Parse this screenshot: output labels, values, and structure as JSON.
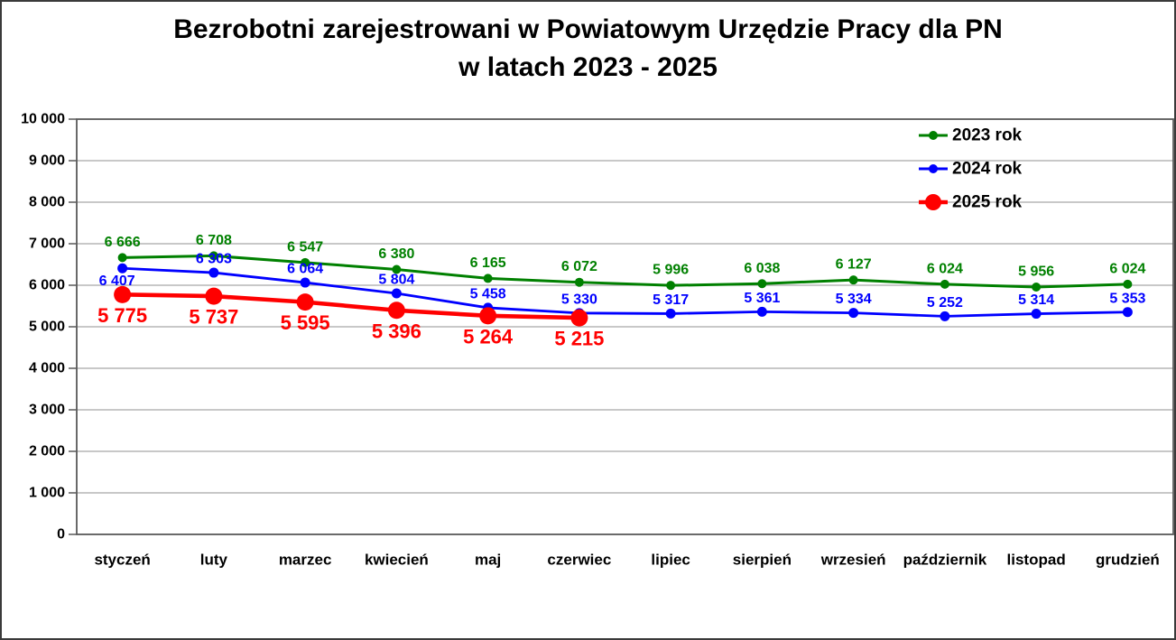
{
  "title": {
    "line1": "Bezrobotni zarejestrowani w Powiatowym Urzędzie Pracy dla PN",
    "line2": "w latach 2023 - 2025"
  },
  "y_axis": {
    "tick_labels": [
      "0",
      "1 000",
      "2 000",
      "3 000",
      "4 000",
      "5 000",
      "6 000",
      "7 000",
      "8 000",
      "9 000",
      "10 000"
    ]
  },
  "legend": {
    "items": [
      "2023 rok",
      "2024 rok",
      "2025 rok"
    ]
  },
  "colors": {
    "series_2023": "#008000",
    "series_2024": "#0000ff",
    "series_2025": "#ff0000",
    "gridline": "#a6a6a6",
    "plot_border": "#595959",
    "text": "#000000",
    "background": "#ffffff"
  },
  "chart_data": {
    "type": "line",
    "title": "Bezrobotni zarejestrowani w Powiatowym Urzędzie Pracy dla PN w latach 2023 - 2025",
    "categories": [
      "styczeń",
      "luty",
      "marzec",
      "kwiecień",
      "maj",
      "czerwiec",
      "lipiec",
      "sierpień",
      "wrzesień",
      "październik",
      "listopad",
      "grudzień"
    ],
    "series": [
      {
        "name": "2023 rok",
        "color": "#008000",
        "line_width": 3,
        "marker_radius": 5,
        "label_font_size": 16,
        "label_dy": -17,
        "values": [
          6666,
          6708,
          6547,
          6380,
          6165,
          6072,
          5996,
          6038,
          6127,
          6024,
          5956,
          6024
        ]
      },
      {
        "name": "2024 rok",
        "color": "#0000ff",
        "line_width": 2.8,
        "marker_radius": 5.5,
        "label_font_size": 16,
        "label_dy": -15,
        "label_overrides": {
          "0": {
            "dx": -6,
            "dy": 14
          }
        },
        "values": [
          6407,
          6303,
          6064,
          5804,
          5458,
          5330,
          5317,
          5361,
          5334,
          5252,
          5314,
          5353
        ]
      },
      {
        "name": "2025 rok",
        "color": "#ff0000",
        "line_width": 4.6,
        "marker_radius": 9.5,
        "label_font_size": 22,
        "label_dy": 23,
        "values": [
          5775,
          5737,
          5595,
          5396,
          5264,
          5215
        ]
      }
    ],
    "ylim": [
      0,
      10000
    ],
    "ytick_step": 1000,
    "grid": true,
    "legend_position": "top-right",
    "data_labels": true
  }
}
